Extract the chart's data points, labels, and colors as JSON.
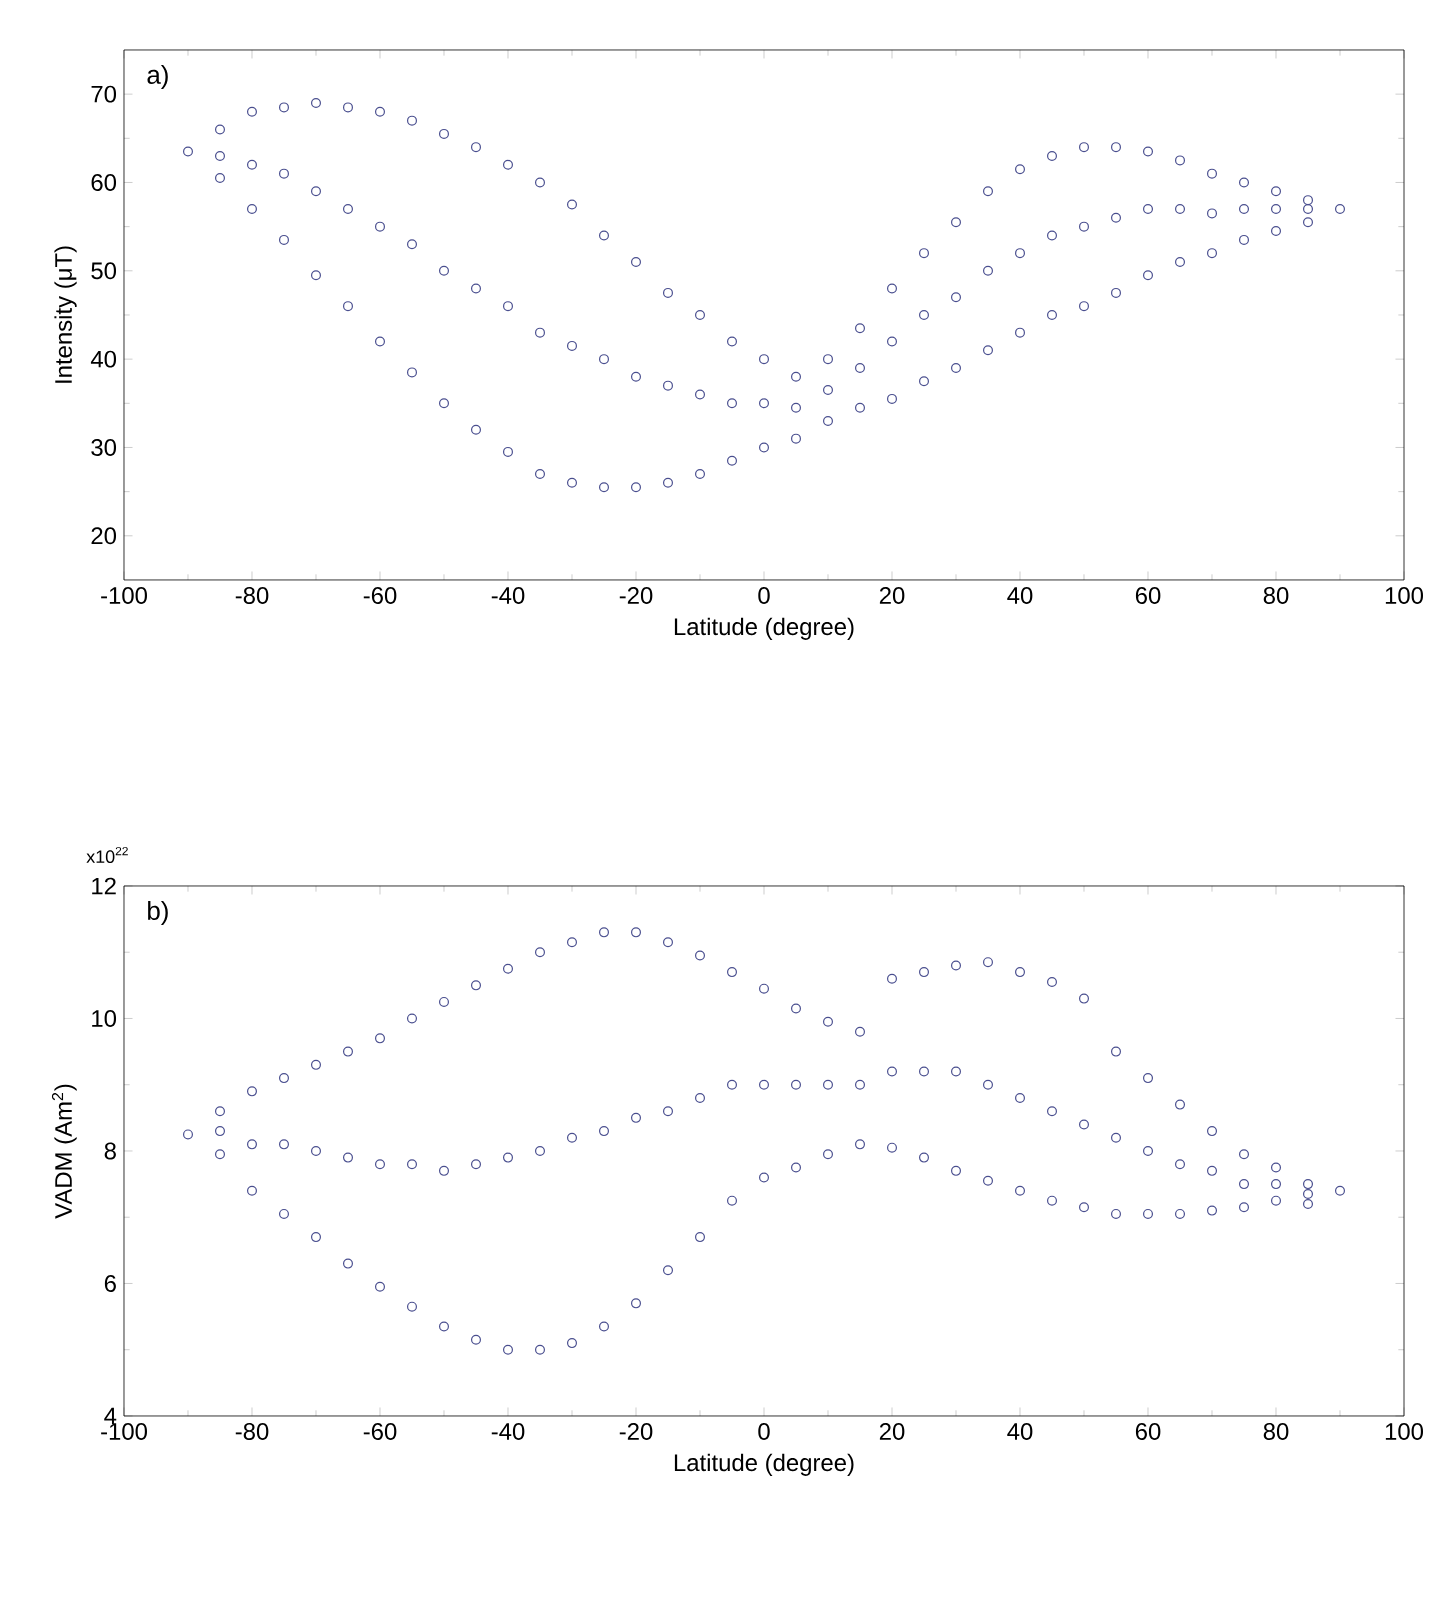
{
  "chart_data": [
    {
      "type": "scatter",
      "xlabel": "Latitude (degree)",
      "ylabel": "Intensity (μT)",
      "annotations": [
        "a)"
      ],
      "marker": "circle",
      "xlim": [
        -100,
        100
      ],
      "xticks": [
        -100,
        -80,
        -60,
        -40,
        -20,
        0,
        20,
        40,
        60,
        80,
        100
      ],
      "ylim": [
        15,
        75
      ],
      "yticks": [
        20,
        30,
        40,
        50,
        60,
        70
      ],
      "series": [
        {
          "color": "#4a4f8f",
          "x": [
            -90,
            -85,
            -85,
            -85,
            -80,
            -80,
            -80,
            -75,
            -75,
            -75,
            -70,
            -70,
            -70,
            -65,
            -65,
            -65,
            -60,
            -60,
            -60,
            -55,
            -55,
            -55,
            -50,
            -50,
            -50,
            -45,
            -45,
            -45,
            -40,
            -40,
            -40,
            -35,
            -35,
            -35,
            -30,
            -30,
            -30,
            -25,
            -25,
            -25,
            -20,
            -20,
            -20,
            -15,
            -15,
            -15,
            -10,
            -10,
            -10,
            -5,
            -5,
            -5,
            0,
            0,
            0,
            5,
            5,
            5,
            10,
            10,
            10,
            15,
            15,
            15,
            20,
            20,
            20,
            25,
            25,
            25,
            30,
            30,
            30,
            35,
            35,
            35,
            40,
            40,
            40,
            45,
            45,
            45,
            50,
            50,
            50,
            55,
            55,
            55,
            60,
            60,
            60,
            65,
            65,
            65,
            70,
            70,
            70,
            75,
            75,
            75,
            80,
            80,
            80,
            85,
            85,
            85,
            90
          ],
          "values": [
            63.5,
            60.5,
            63,
            66,
            57,
            62,
            68,
            53.5,
            61,
            68.5,
            49.5,
            59,
            69,
            46,
            57,
            68.5,
            42,
            55,
            68,
            38.5,
            53,
            67,
            35,
            50,
            65.5,
            32,
            48,
            64,
            29.5,
            46,
            62,
            27,
            43,
            60,
            26,
            41.5,
            57.5,
            25.5,
            40,
            54,
            25.5,
            38,
            51,
            26,
            37,
            47.5,
            27,
            36,
            45,
            28.5,
            35,
            42,
            30,
            35,
            40,
            31,
            34.5,
            38,
            33,
            36.5,
            40,
            34.5,
            39,
            43.5,
            35.5,
            42,
            48,
            37.5,
            45,
            52,
            39,
            47,
            55.5,
            41,
            50,
            59,
            43,
            52,
            61.5,
            45,
            54,
            63,
            46,
            55,
            64,
            47.5,
            56,
            64,
            49.5,
            57,
            63.5,
            51,
            57,
            62.5,
            52,
            56.5,
            61,
            53.5,
            57,
            60,
            54.5,
            57,
            59,
            55.5,
            57,
            58,
            57
          ]
        }
      ]
    },
    {
      "type": "scatter",
      "xlabel": "Latitude (degree)",
      "ylabel": "VADM (Am$^{2}$)",
      "annotations": [
        "b)",
        "x10$^{22}$"
      ],
      "marker": "circle",
      "xlim": [
        -100,
        100
      ],
      "xticks": [
        -100,
        -80,
        -60,
        -40,
        -20,
        0,
        20,
        40,
        60,
        80,
        100
      ],
      "ylim": [
        4,
        12
      ],
      "yticks": [
        4,
        6,
        8,
        10,
        12
      ],
      "series": [
        {
          "color": "#4a4f8f",
          "x": [
            -90,
            -85,
            -85,
            -85,
            -80,
            -80,
            -80,
            -75,
            -75,
            -75,
            -70,
            -70,
            -70,
            -65,
            -65,
            -65,
            -60,
            -60,
            -60,
            -55,
            -55,
            -55,
            -50,
            -50,
            -50,
            -45,
            -45,
            -45,
            -40,
            -40,
            -40,
            -35,
            -35,
            -35,
            -30,
            -30,
            -30,
            -25,
            -25,
            -25,
            -20,
            -20,
            -20,
            -15,
            -15,
            -15,
            -10,
            -10,
            -10,
            -5,
            -5,
            -5,
            0,
            0,
            0,
            5,
            5,
            5,
            10,
            10,
            10,
            15,
            15,
            15,
            20,
            20,
            20,
            25,
            25,
            25,
            30,
            30,
            30,
            35,
            35,
            35,
            40,
            40,
            40,
            45,
            45,
            45,
            50,
            50,
            50,
            55,
            55,
            55,
            60,
            60,
            60,
            65,
            65,
            65,
            70,
            70,
            70,
            75,
            75,
            75,
            80,
            80,
            80,
            85,
            85,
            85,
            90
          ],
          "values": [
            8.25,
            7.95,
            8.3,
            8.6,
            7.4,
            8.1,
            8.9,
            7.05,
            8.1,
            9.1,
            6.7,
            8,
            9.3,
            6.3,
            7.9,
            9.5,
            5.95,
            7.8,
            9.7,
            5.65,
            7.8,
            10,
            5.35,
            7.7,
            10.25,
            5.15,
            7.8,
            10.5,
            5,
            7.9,
            10.75,
            5,
            8,
            11,
            5.1,
            8.2,
            11.15,
            5.35,
            8.3,
            11.3,
            5.7,
            8.5,
            11.3,
            6.2,
            8.6,
            11.15,
            6.7,
            8.8,
            10.95,
            7.25,
            9,
            10.7,
            7.6,
            9,
            10.45,
            7.75,
            9,
            10.15,
            7.95,
            9,
            9.95,
            8.1,
            9,
            9.8,
            8.05,
            9.2,
            10.6,
            7.9,
            9.2,
            10.7,
            7.7,
            9.2,
            10.8,
            7.55,
            9,
            10.85,
            7.4,
            8.8,
            10.7,
            7.25,
            8.6,
            10.55,
            7.15,
            8.4,
            10.3,
            7.05,
            8.2,
            9.5,
            7.05,
            8,
            9.1,
            7.05,
            7.8,
            8.7,
            7.1,
            7.7,
            8.3,
            7.15,
            7.5,
            7.95,
            7.25,
            7.5,
            7.75,
            7.2,
            7.35,
            7.5,
            7.4
          ]
        }
      ]
    }
  ]
}
